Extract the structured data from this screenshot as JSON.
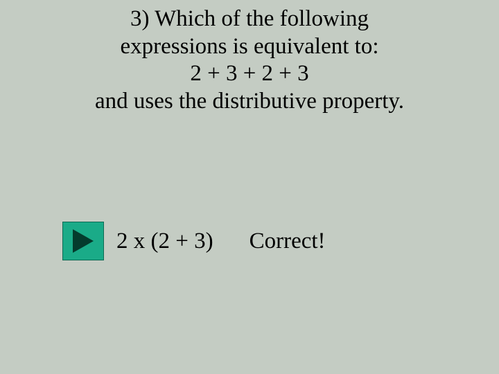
{
  "slide": {
    "background_color": "#c4ccc3",
    "font_family": "Times New Roman",
    "question": {
      "line1": "3) Which of the following",
      "line2": "expressions is equivalent to:",
      "line3": "2 + 3 + 2 + 3",
      "line4": "and uses the distributive property.",
      "font_size": 33,
      "color": "#000000"
    },
    "answer": {
      "expression": "2 x (2 + 3)",
      "feedback": "Correct!",
      "font_size": 33,
      "color": "#000000"
    },
    "play_button": {
      "background_color": "#1aab88",
      "triangle_color": "#043b2d",
      "border_color": "#0d6b55",
      "width": 58,
      "height": 54
    }
  }
}
